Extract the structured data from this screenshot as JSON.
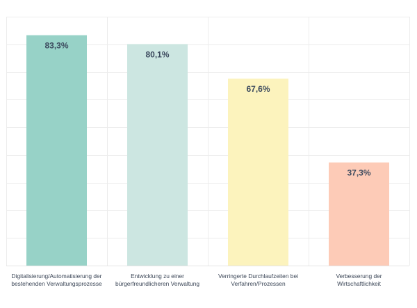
{
  "chart_data": {
    "type": "bar",
    "categories": [
      [
        "Digitalisierung/Automatisierung der",
        "bestehenden Verwaltungsprozesse"
      ],
      [
        "Entwicklung zu einer",
        "bürgerfreundlicheren Verwaltung"
      ],
      [
        "Verringerte Durchlaufzeiten bei",
        "Verfahren/Prozessen"
      ],
      [
        "Verbesserung der",
        "Wirtschaftlichkeit"
      ]
    ],
    "values": [
      83.3,
      80.1,
      67.6,
      37.3
    ],
    "value_labels": [
      "83,3%",
      "80,1%",
      "67,6%",
      "37,3%"
    ],
    "colors": [
      "#97d2c7",
      "#cce6e1",
      "#fcf3bd",
      "#fdcbb7"
    ],
    "ylim": [
      0,
      90
    ],
    "grid": true,
    "title": "",
    "xlabel": "",
    "ylabel": ""
  }
}
